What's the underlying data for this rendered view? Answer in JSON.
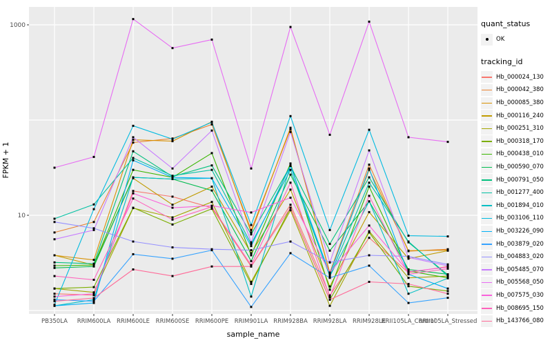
{
  "figure": {
    "background": "#ffffff",
    "panel_background": "#EBEBEB",
    "gridline_color": "#ffffff",
    "tick_label_color": "#4d4d4d",
    "point_color": "#000000"
  },
  "axes": {
    "x_title": "sample_name",
    "y_title": "FPKM + 1",
    "y_tick_labels": [
      "10",
      "1000"
    ],
    "x_tick_labels": [
      "PB350LA",
      "RRIM600LA",
      "RRIM600LE",
      "RRIM600SE",
      "RRIM600PE",
      "RRIM901LA",
      "RRIM928BA",
      "RRIM928LA",
      "RRIM928LE",
      "RRII105LA_Control",
      "RRII105LA_Stressed"
    ]
  },
  "legend": {
    "quant_status_title": "quant_status",
    "quant_status_items": [
      "OK"
    ],
    "tracking_title": "tracking_id"
  },
  "chart_data": {
    "type": "line",
    "title": "",
    "xlabel": "sample_name",
    "ylabel": "FPKM + 1",
    "y_scale": "log10",
    "ylim": [
      1,
      1550
    ],
    "y_major_gridlines": [
      1,
      10,
      100,
      1000
    ],
    "y_tick_values": [
      10,
      1000
    ],
    "grid": true,
    "legend_position": "right",
    "marker": "black-point-all-vertices",
    "categories": [
      "PB350LA",
      "RRIM600LA",
      "RRIM600LE",
      "RRIM600SE",
      "RRIM600PE",
      "RRIM901LA",
      "RRIM928BA",
      "RRIM928LA",
      "RRIM928LE",
      "RRII105LA_Control",
      "RRII105LA_Stressed"
    ],
    "quant_status": "OK",
    "series": [
      {
        "name": "Hb_000024_130",
        "color": "#F8766D",
        "values": [
          1.5,
          1.45,
          18,
          15.7,
          12,
          2.9,
          12.9,
          1.44,
          5.8,
          2.5,
          2.9
        ]
      },
      {
        "name": "Hb_000042_380",
        "color": "#EA8331",
        "values": [
          6.6,
          8.5,
          58,
          64,
          90,
          7.0,
          80,
          2.5,
          34,
          4.2,
          4.4
        ]
      },
      {
        "name": "Hb_000085_380",
        "color": "#D89000",
        "values": [
          3.8,
          3.4,
          62,
          60,
          96,
          6.6,
          83,
          2.45,
          30,
          4.25,
          4.3
        ]
      },
      {
        "name": "Hb_000116_240",
        "color": "#C09B00",
        "values": [
          3.8,
          3.0,
          24.5,
          12.9,
          20,
          4.0,
          18.6,
          1.79,
          10.8,
          3.5,
          4.25
        ]
      },
      {
        "name": "Hb_000251_310",
        "color": "#A3A500",
        "values": [
          1.7,
          1.55,
          11.9,
          9.5,
          13.8,
          2.0,
          11.3,
          1.12,
          6.8,
          2.2,
          2.3
        ]
      },
      {
        "name": "Hb_000318_170",
        "color": "#7CAE00",
        "values": [
          1.7,
          1.76,
          12,
          8.0,
          11.7,
          1.9,
          12,
          1.3,
          6.6,
          1.8,
          1.6
        ]
      },
      {
        "name": "Hb_000438_010",
        "color": "#39B600",
        "values": [
          2.96,
          3.0,
          30,
          25,
          45,
          3.8,
          35,
          1.65,
          20,
          2.6,
          2.2
        ]
      },
      {
        "name": "Hb_000590_070",
        "color": "#00BB4E",
        "values": [
          2.8,
          2.9,
          25,
          24,
          18.2,
          3.3,
          26.7,
          4.25,
          14,
          2.7,
          2.4
        ]
      },
      {
        "name": "Hb_000791_050",
        "color": "#00BF7D",
        "values": [
          3.2,
          3.1,
          47,
          25.5,
          33.4,
          6.3,
          33,
          5.0,
          25,
          5.2,
          2.37
        ]
      },
      {
        "name": "Hb_001277_400",
        "color": "#00C1A3",
        "values": [
          9.2,
          13.0,
          40,
          26,
          30,
          5.0,
          30,
          2.3,
          22,
          5.3,
          2.3
        ]
      },
      {
        "name": "Hb_001894_010",
        "color": "#00BFC4",
        "values": [
          1.12,
          1.3,
          25,
          24,
          24.5,
          1.4,
          33.4,
          2.3,
          14,
          1.5,
          2.18
        ]
      },
      {
        "name": "Hb_003106_110",
        "color": "#00BAE0",
        "values": [
          1.15,
          11.6,
          87,
          63,
          95,
          7.9,
          110,
          7.0,
          79,
          6.1,
          6.0
        ]
      },
      {
        "name": "Hb_003226_090",
        "color": "#00B0F6",
        "values": [
          1.12,
          1.2,
          37.8,
          25,
          24.5,
          4.75,
          33,
          2.4,
          31,
          2.4,
          1.7
        ]
      },
      {
        "name": "Hb_003879_020",
        "color": "#35A2FF",
        "values": [
          1.3,
          1.25,
          3.9,
          3.5,
          4.3,
          1.09,
          4.0,
          2.2,
          2.96,
          1.2,
          1.36
        ]
      },
      {
        "name": "Hb_004883_020",
        "color": "#9590FF",
        "values": [
          8.5,
          7.3,
          5.3,
          4.6,
          4.4,
          4.3,
          5.3,
          3.2,
          3.8,
          3.7,
          3.05
        ]
      },
      {
        "name": "Hb_005485_070",
        "color": "#C77CFF",
        "values": [
          5.6,
          7.0,
          66,
          31,
          77.6,
          5.2,
          75,
          3.2,
          48,
          3.6,
          2.95
        ]
      },
      {
        "name": "Hb_005568_050",
        "color": "#E76BF3",
        "values": [
          31.6,
          41,
          1150,
          570,
          700,
          31,
          950,
          70,
          1080,
          66,
          59
        ]
      },
      {
        "name": "Hb_007575_030",
        "color": "#FA62DB",
        "values": [
          1.4,
          1.5,
          17,
          12,
          12.6,
          10.7,
          15.3,
          2.5,
          7.8,
          2.55,
          2.85
        ]
      },
      {
        "name": "Hb_008695_150",
        "color": "#FF62BC",
        "values": [
          2.3,
          2.1,
          15,
          9.0,
          12.3,
          3.0,
          22,
          1.38,
          16,
          2.4,
          2.75
        ]
      },
      {
        "name": "Hb_143766_080",
        "color": "#FF6A98",
        "values": [
          1.25,
          1.35,
          2.7,
          2.3,
          2.9,
          2.9,
          12,
          1.3,
          2.0,
          1.9,
          1.5
        ]
      }
    ]
  }
}
